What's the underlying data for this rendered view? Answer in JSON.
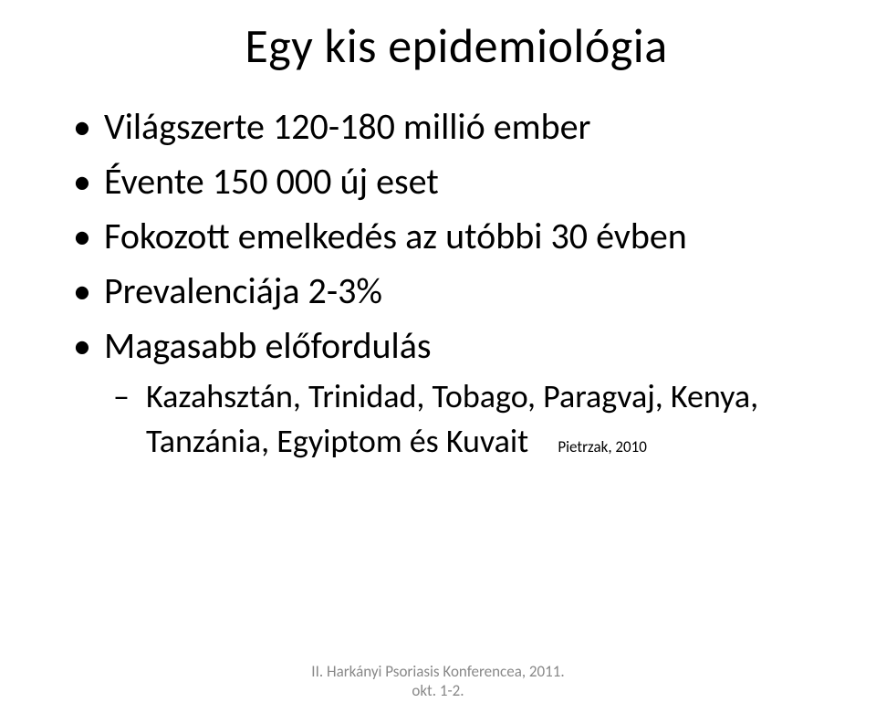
{
  "title": "Egy kis epidemiológia",
  "bullets": {
    "b0": "Világszerte 120-180 millió ember",
    "b1": "Évente 150 000 új eset",
    "b2": "Fokozott emelkedés az utóbbi 30 évben",
    "b3": "Prevalenciája 2-3%",
    "b4": "Magasabb előfordulás",
    "b4_sub_line1": "Kazahsztán, Trinidad, Tobago, Paragvaj, Kenya,",
    "b4_sub_line2": "Tanzánia, Egyiptom és Kuvait",
    "citation": "Pietrzak, 2010"
  },
  "footer": {
    "line1": "II. Harkányi Psoriasis Konferencea, 2011.",
    "line2": "okt. 1-2."
  },
  "style": {
    "background_color": "#ffffff",
    "text_color": "#000000",
    "footer_color": "#888888",
    "title_fontsize": 52,
    "bullet_fontsize": 40,
    "subbullet_fontsize": 36,
    "citation_fontsize": 17,
    "footer_fontsize": 17,
    "font_family": "Calibri"
  }
}
